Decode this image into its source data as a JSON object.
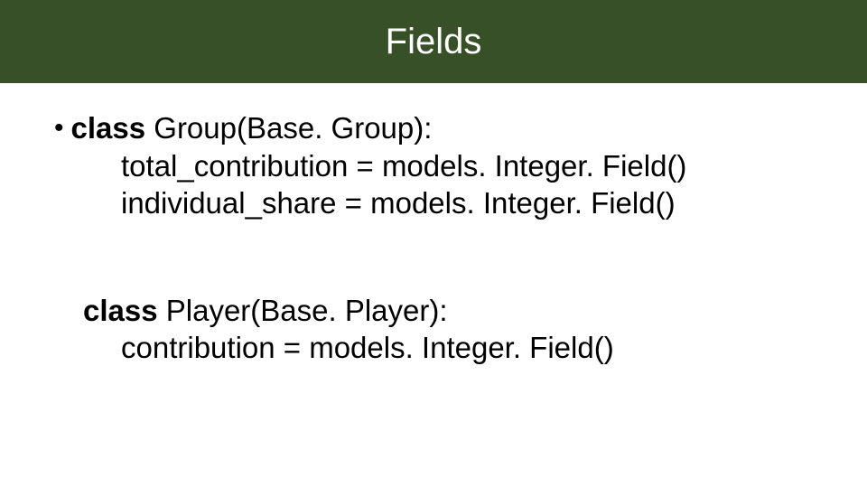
{
  "header": {
    "title": "Fields",
    "background_color": "#375027",
    "title_color": "#ffffff",
    "title_fontsize": 40
  },
  "content": {
    "text_color": "#000000",
    "fontsize": 33,
    "block1": {
      "line1_keyword": "class",
      "line1_rest": " Group(Base. Group):",
      "line2": "total_contribution = models. Integer. Field()",
      "line3": "individual_share = models. Integer. Field()"
    },
    "block2": {
      "line1_keyword": "class",
      "line1_rest": " Player(Base. Player):",
      "line2": "contribution = models. Integer. Field()"
    }
  }
}
